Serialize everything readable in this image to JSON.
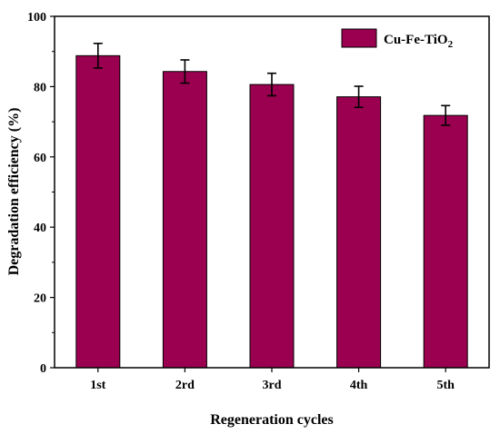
{
  "chart_data": {
    "type": "bar",
    "categories": [
      "1st",
      "2rd",
      "3rd",
      "4th",
      "5th"
    ],
    "series": [
      {
        "name": "Cu-Fe-TiO",
        "name_subscript": "2",
        "values": [
          88.8,
          84.3,
          80.6,
          77.1,
          71.8
        ],
        "errors": [
          3.5,
          3.3,
          3.2,
          3.0,
          2.8
        ],
        "color": "#9b0050"
      }
    ],
    "xlabel": "Regeneration cycles",
    "ylabel": "Degradation efficiency (%)",
    "ylim": [
      0,
      100
    ],
    "yticks": [
      0,
      20,
      40,
      60,
      80,
      100
    ],
    "grid": false,
    "legend_position": "top-right"
  }
}
